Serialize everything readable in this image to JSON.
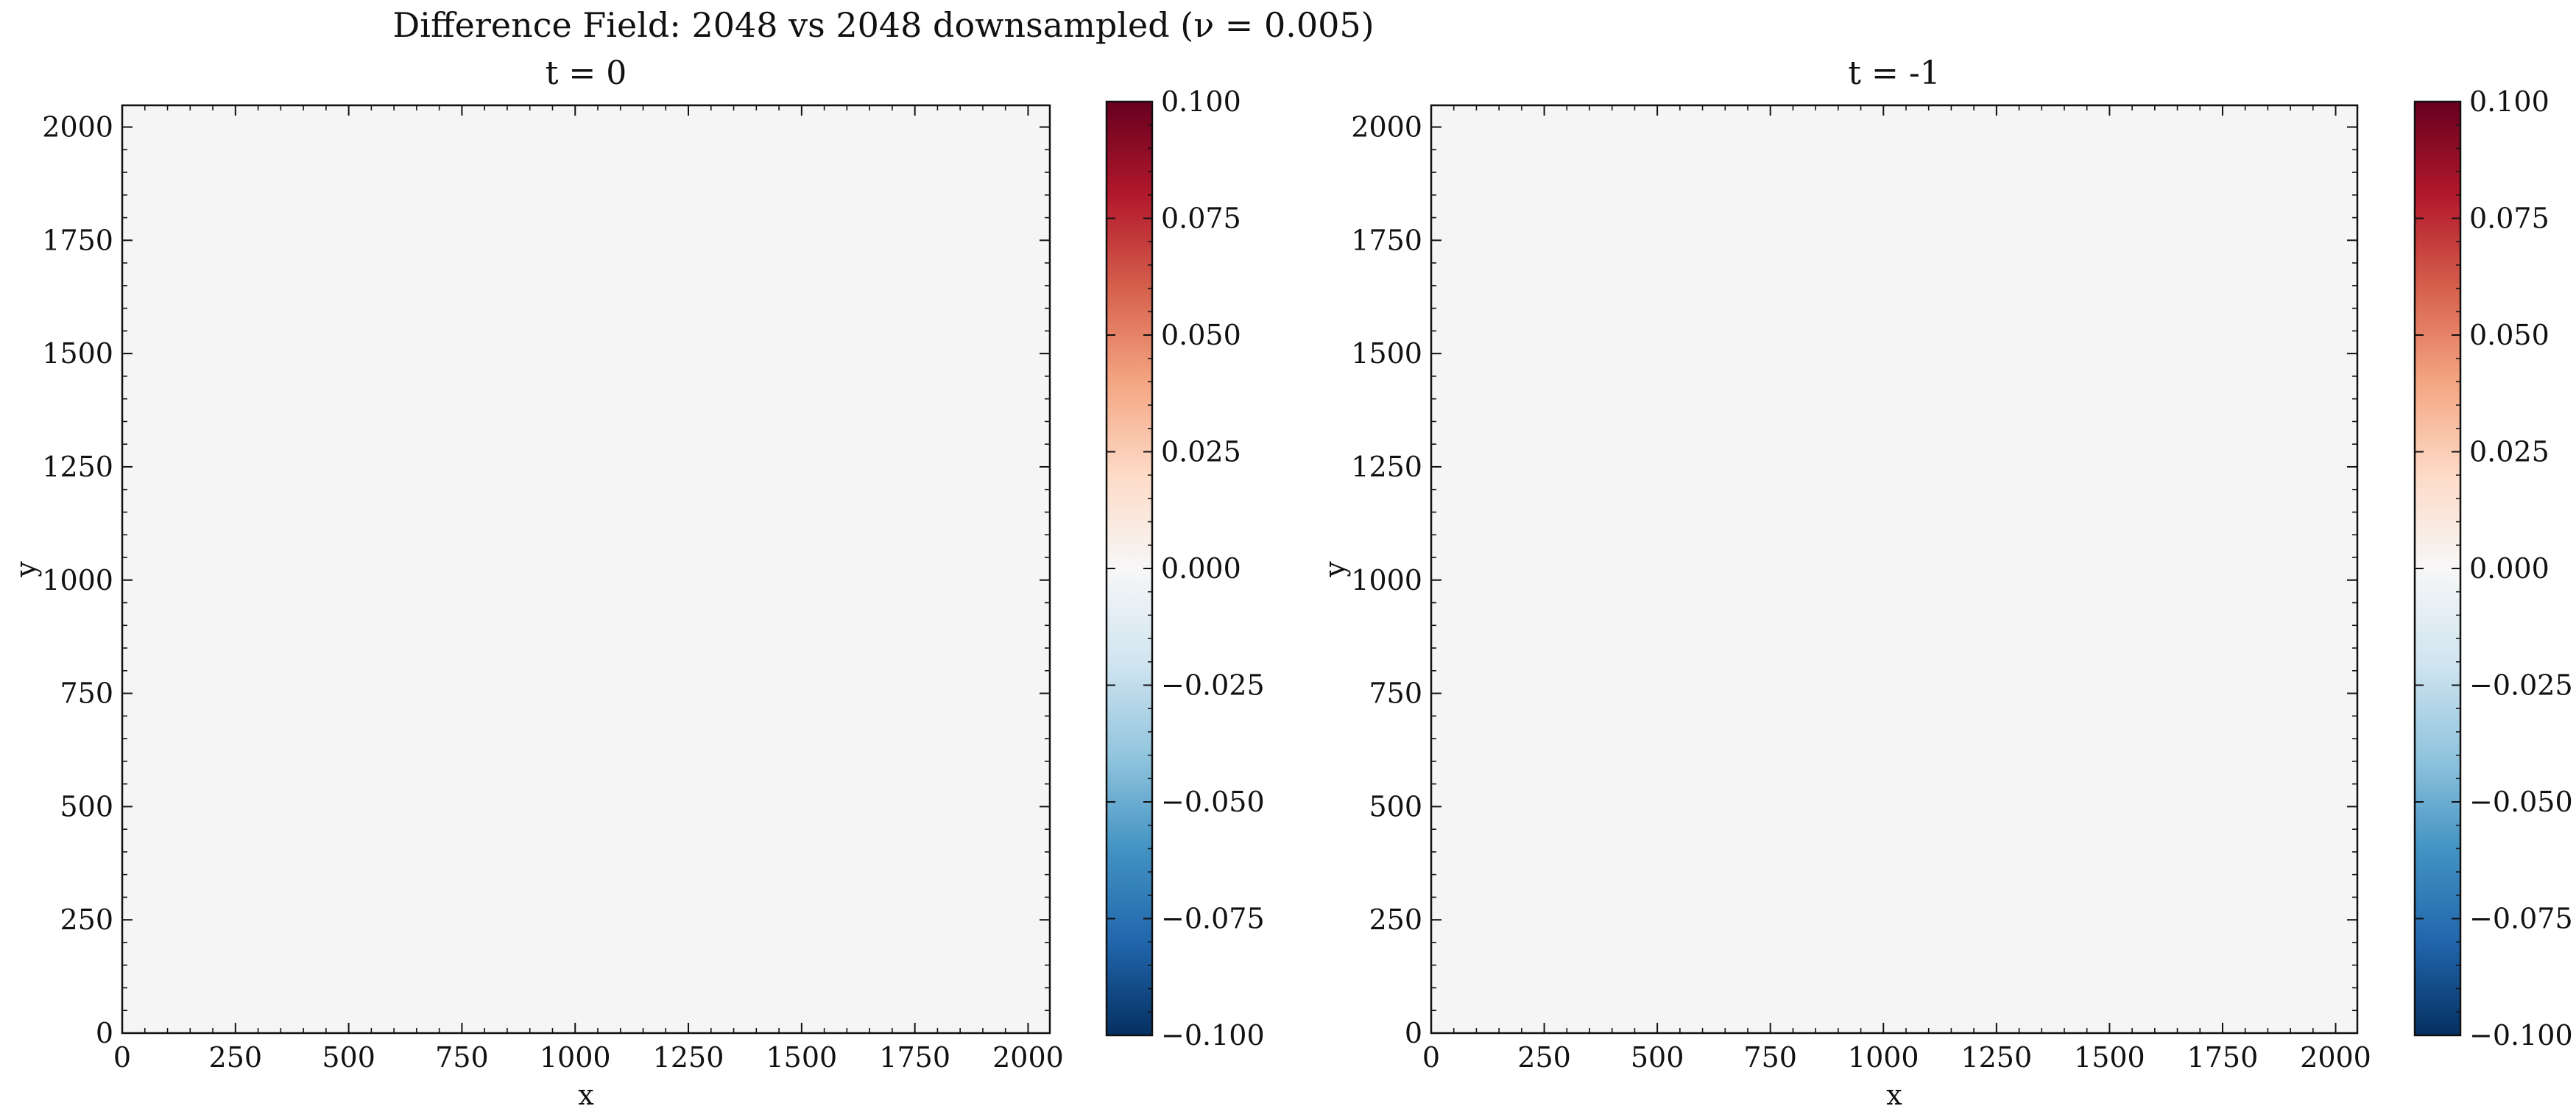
{
  "figure": {
    "suptitle": "Difference Field: 2048 vs 2048 downsampled (ν = 0.005)"
  },
  "chart_data": [
    {
      "type": "heatmap",
      "title": "t = 0",
      "xlabel": "x",
      "ylabel": "y",
      "xlim": [
        0,
        2048
      ],
      "ylim": [
        0,
        2048
      ],
      "xticks": [
        0,
        250,
        500,
        750,
        1000,
        1250,
        1500,
        1750,
        2000
      ],
      "yticks": [
        0,
        250,
        500,
        750,
        1000,
        1250,
        1500,
        1750,
        2000
      ],
      "field_value": 0.0,
      "colormap": "RdBu_r",
      "colorbar": {
        "vmin": -0.1,
        "vmax": 0.1,
        "ticks": [
          -0.1,
          -0.075,
          -0.05,
          -0.025,
          0.0,
          0.025,
          0.05,
          0.075,
          0.1
        ],
        "tick_labels": [
          "−0.100",
          "−0.075",
          "−0.050",
          "−0.025",
          "0.000",
          "0.025",
          "0.050",
          "0.075",
          "0.100"
        ]
      }
    },
    {
      "type": "heatmap",
      "title": "t = -1",
      "xlabel": "x",
      "ylabel": "y",
      "xlim": [
        0,
        2048
      ],
      "ylim": [
        0,
        2048
      ],
      "xticks": [
        0,
        250,
        500,
        750,
        1000,
        1250,
        1500,
        1750,
        2000
      ],
      "yticks": [
        0,
        250,
        500,
        750,
        1000,
        1250,
        1500,
        1750,
        2000
      ],
      "field_value": 0.0,
      "colormap": "RdBu_r",
      "colorbar": {
        "vmin": -0.1,
        "vmax": 0.1,
        "ticks": [
          -0.1,
          -0.075,
          -0.05,
          -0.025,
          0.0,
          0.025,
          0.05,
          0.075,
          0.1
        ],
        "tick_labels": [
          "−0.100",
          "−0.075",
          "−0.050",
          "−0.025",
          "0.000",
          "0.025",
          "0.050",
          "0.075",
          "0.100"
        ]
      }
    }
  ],
  "colors": {
    "field_fill": "#f5f5f5",
    "cmap_stops": [
      "#053061",
      "#2166ac",
      "#4393c3",
      "#92c5de",
      "#d1e5f0",
      "#f7f7f7",
      "#fddbc7",
      "#f4a582",
      "#d6604d",
      "#b2182b",
      "#67001f"
    ]
  }
}
